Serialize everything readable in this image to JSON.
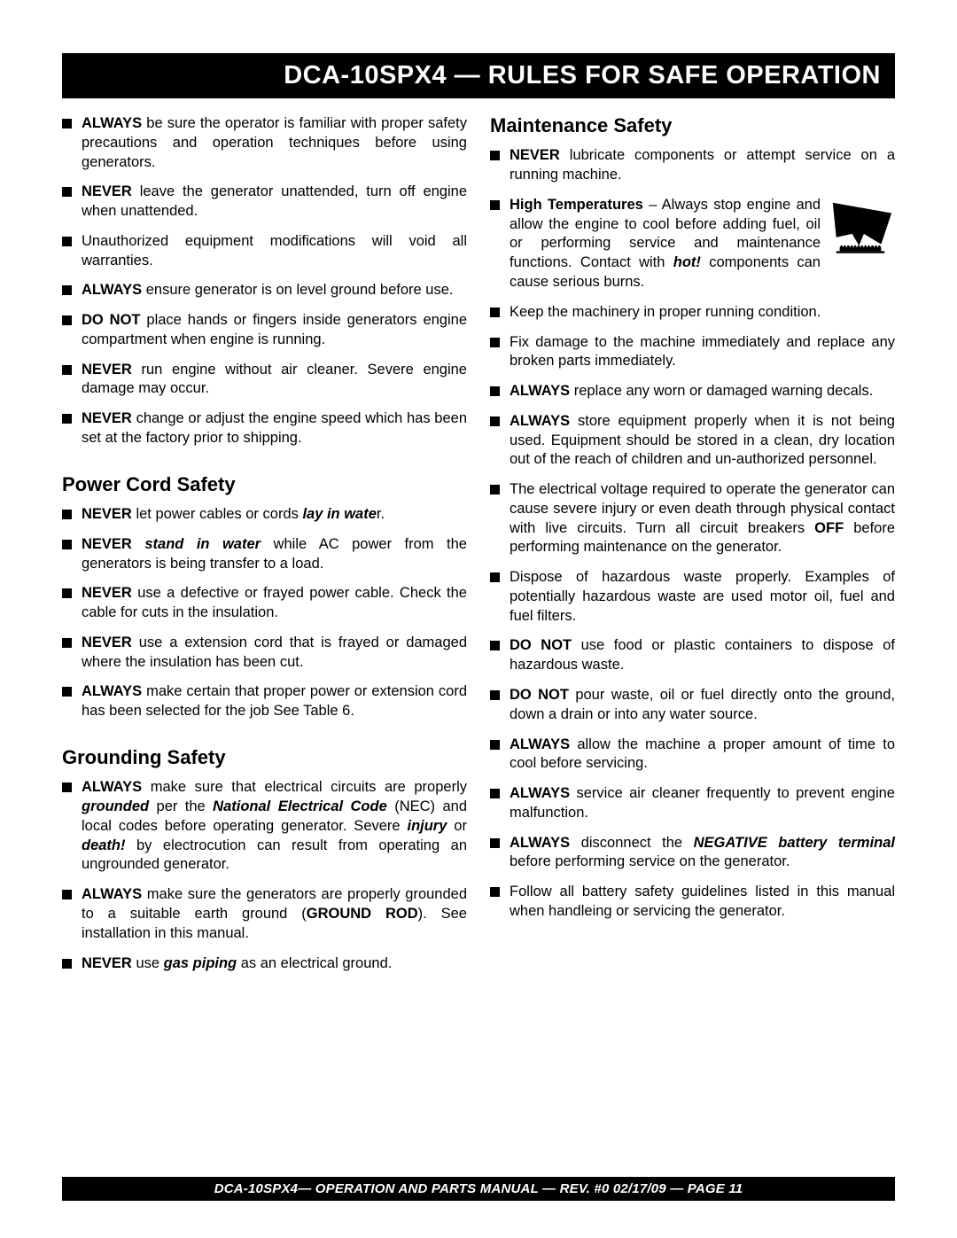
{
  "title_bar": "DCA-10SPX4 — RULES FOR SAFE OPERATION",
  "footer": "DCA-10SPX4— OPERATION AND PARTS MANUAL — REV. #0  02/17/09 — PAGE 11",
  "left": {
    "general": [
      "<span class='b'>ALWAYS</span> be sure the operator is familiar with proper safety precautions and operation techniques before using generators.",
      "<span class='b'>NEVER</span>  leave the generator unattended, turn off engine when unattended.",
      "Unauthorized equipment modifications will void all warranties.",
      "<span class='b'>ALWAYS</span> ensure generator is on level ground before use.",
      "<span class='b'>DO NOT</span> place  hands or fingers inside generators engine compartment when engine is running.",
      "<span class='b'>NEVER</span>  run engine without air cleaner. Severe engine damage may occur.",
      "<span class='b'>NEVER</span> change or adjust the engine speed which has been set at the factory prior to shipping."
    ],
    "power_heading": "Power Cord Safety",
    "power": [
      "<span class='b'>NEVER</span> let power cables or cords <span class='bi'>lay in wate</span>r.",
      "<span class='b'>NEVER</span> <span class='bi'>stand in water</span>  while AC power from the generators is being transfer to a load.",
      "<span class='b'>NEVER</span> use a defective or frayed power cable. Check the cable for cuts in the insulation.",
      "<span class='b'>NEVER</span> use a extension cord that is frayed or damaged where the insulation has been cut.",
      "<span class='b'>ALWAYS</span> make certain that proper power or extension cord has been selected for the job See Table 6."
    ],
    "ground_heading": "Grounding Safety",
    "ground": [
      "<span class='b'>ALWAYS</span> make sure that electrical circuits are properly <span class='bi'>grounded</span> per the <span class='bi'>National Electrical  Code</span> (NEC) and local codes before operating generator. Severe <span class='bi'>injury</span> or <span class='bi'>death!</span> by electrocution can result from operating an ungrounded generator.",
      "<span class='b'>ALWAYS</span> make sure the generators are properly grounded to a suitable earth ground (<span class='b'>GROUND ROD</span>). See installation in this manual.",
      "<span class='b'>NEVER</span> use <span class='bi'>gas piping</span> as an electrical ground."
    ]
  },
  "right": {
    "maint_heading": "Maintenance Safety",
    "maint": [
      "<span class='b'>NEVER</span> lubricate components or attempt service on a running machine.",
      "__HOT__<span class='b'>High Temperatures</span> – Always stop engine and allow the engine to cool before adding fuel, oil or performing service and maintenance functions. Contact with <span class='bi'>hot!</span> components can cause serious burns.",
      "Keep the machinery in proper running condition.",
      "Fix damage to the machine immediately and replace any broken parts immediately.",
      "<span class='b'>ALWAYS</span> replace any worn  or damaged warning decals.",
      "<span class='b'>ALWAYS</span> store equipment properly when it is not being used. Equipment should be stored in a clean, dry location out of the reach of children and un-authorized personnel.",
      "The electrical voltage required to operate the generator can cause severe injury or even death through physical contact with live circuits. Turn all circuit breakers <span class='b'>OFF</span> before performing maintenance on the generator.",
      "Dispose of hazardous waste properly.  Examples of potentially hazardous waste are used motor oil, fuel and fuel filters.",
      "<span class='b'>DO NOT</span> use food or plastic containers to dispose of hazardous waste.",
      "<span class='b'>DO NOT</span> pour waste, oil or fuel directly onto the ground, down a drain or into any water source.",
      "<span class='b'>ALWAYS</span> allow the machine a proper amount of time to cool before servicing.",
      "<span class='b'>ALWAYS</span> service air cleaner frequently to prevent engine malfunction.",
      "<span class='b'>ALWAYS</span> disconnect the <span class='bi'>NEGATIVE battery terminal</span> before performing service on the generator.",
      "Follow all battery safety guidelines listed in this manual when handleing or servicing the generator."
    ]
  },
  "hot_icon_svg": "<svg viewBox='0 0 100 100' xmlns='http://www.w3.org/2000/svg'><path d='M 10 10 L 95 25 L 80 70 L 55 55 L 48 72 L 38 55 L 15 60 Z' fill='#000'/><path d='M 20 75 Q 23 68 25 75 Q 27 68 30 75 Q 32 68 35 75 Q 37 68 40 75 Q 42 68 45 75 Q 47 68 50 75 Q 52 68 55 75 Q 57 68 60 75 Q 62 68 65 75 Q 67 68 70 75 Q 72 68 75 75 Q 77 68 80 75 L 80 80 L 20 80 Z' fill='#000'/><rect x='15' y='80' width='70' height='3' fill='#000'/></svg>"
}
